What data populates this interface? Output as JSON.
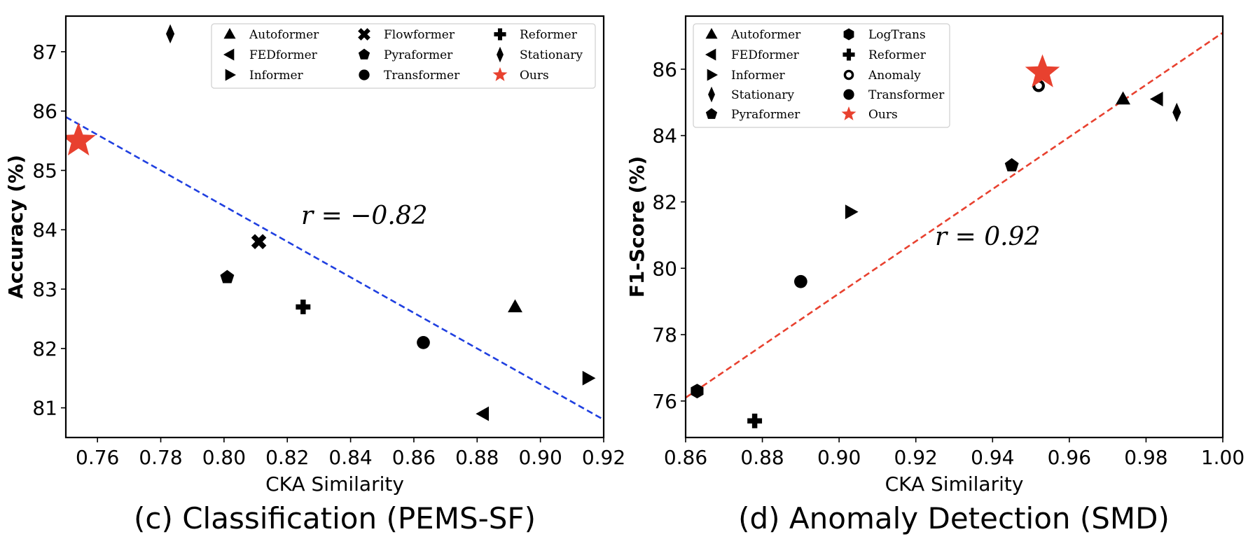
{
  "chart_data": [
    {
      "type": "scatter",
      "caption": "(c) Classification (PEMS-SF)",
      "xlabel": "CKA Similarity",
      "ylabel": "Accuracy (%)",
      "xlim": [
        0.75,
        0.92
      ],
      "ylim": [
        80.5,
        87.6
      ],
      "xticks": [
        0.76,
        0.78,
        0.8,
        0.82,
        0.84,
        0.86,
        0.88,
        0.9,
        0.92
      ],
      "yticks": [
        81,
        82,
        83,
        84,
        85,
        86,
        87
      ],
      "grid": false,
      "legend_position": "top-right",
      "annotation": "r = −0.82",
      "trendline": {
        "color": "#1f3fe0",
        "style": "dashed",
        "points": [
          [
            0.75,
            85.9
          ],
          [
            0.92,
            80.8
          ]
        ]
      },
      "series": [
        {
          "name": "Autoformer",
          "marker": "triangle-up",
          "color": "#000000",
          "x": 0.892,
          "y": 82.7
        },
        {
          "name": "FEDformer",
          "marker": "triangle-left",
          "color": "#000000",
          "x": 0.882,
          "y": 80.9
        },
        {
          "name": "Informer",
          "marker": "triangle-right",
          "color": "#000000",
          "x": 0.915,
          "y": 81.5
        },
        {
          "name": "Flowformer",
          "marker": "x",
          "color": "#000000",
          "x": 0.811,
          "y": 83.8
        },
        {
          "name": "Pyraformer",
          "marker": "pentagon",
          "color": "#000000",
          "x": 0.801,
          "y": 83.2
        },
        {
          "name": "Transformer",
          "marker": "circle",
          "color": "#000000",
          "x": 0.863,
          "y": 82.1
        },
        {
          "name": "Reformer",
          "marker": "plus",
          "color": "#000000",
          "x": 0.825,
          "y": 82.7
        },
        {
          "name": "Stationary",
          "marker": "thin-diamond",
          "color": "#000000",
          "x": 0.783,
          "y": 87.3
        },
        {
          "name": "Ours",
          "marker": "star",
          "color": "#e8412f",
          "x": 0.754,
          "y": 85.5
        }
      ],
      "legend_order": [
        "Autoformer",
        "FEDformer",
        "Informer",
        "Flowformer",
        "Pyraformer",
        "Transformer",
        "Reformer",
        "Stationary",
        "Ours"
      ]
    },
    {
      "type": "scatter",
      "caption": "(d) Anomaly Detection (SMD)",
      "xlabel": "CKA Similarity",
      "ylabel": "F1-Score (%)",
      "xlim": [
        0.86,
        1.0
      ],
      "ylim": [
        74.9,
        87.6
      ],
      "xticks": [
        0.86,
        0.88,
        0.9,
        0.92,
        0.94,
        0.96,
        0.98,
        1.0
      ],
      "yticks": [
        76,
        78,
        80,
        82,
        84,
        86
      ],
      "grid": false,
      "legend_position": "top-left",
      "annotation": "r = 0.92",
      "trendline": {
        "color": "#e8412f",
        "style": "dashed",
        "points": [
          [
            0.86,
            76.1
          ],
          [
            1.0,
            87.1
          ]
        ]
      },
      "series": [
        {
          "name": "Autoformer",
          "marker": "triangle-up",
          "color": "#000000",
          "x": 0.974,
          "y": 85.1
        },
        {
          "name": "FEDformer",
          "marker": "triangle-left",
          "color": "#000000",
          "x": 0.983,
          "y": 85.1
        },
        {
          "name": "Informer",
          "marker": "triangle-right",
          "color": "#000000",
          "x": 0.903,
          "y": 81.7
        },
        {
          "name": "Stationary",
          "marker": "thin-diamond",
          "color": "#000000",
          "x": 0.988,
          "y": 84.7
        },
        {
          "name": "Pyraformer",
          "marker": "pentagon",
          "color": "#000000",
          "x": 0.945,
          "y": 83.1
        },
        {
          "name": "LogTrans",
          "marker": "hexagon",
          "color": "#000000",
          "x": 0.863,
          "y": 76.3
        },
        {
          "name": "Reformer",
          "marker": "plus",
          "color": "#000000",
          "x": 0.878,
          "y": 75.4
        },
        {
          "name": "Anomaly",
          "marker": "circle-open",
          "color": "#000000",
          "x": 0.952,
          "y": 85.5
        },
        {
          "name": "Transformer",
          "marker": "circle",
          "color": "#000000",
          "x": 0.89,
          "y": 79.6
        },
        {
          "name": "Ours",
          "marker": "star",
          "color": "#e8412f",
          "x": 0.953,
          "y": 85.9
        }
      ],
      "legend_order": [
        "Autoformer",
        "FEDformer",
        "Informer",
        "Stationary",
        "Pyraformer",
        "LogTrans",
        "Reformer",
        "Anomaly",
        "Transformer",
        "Ours"
      ]
    }
  ]
}
